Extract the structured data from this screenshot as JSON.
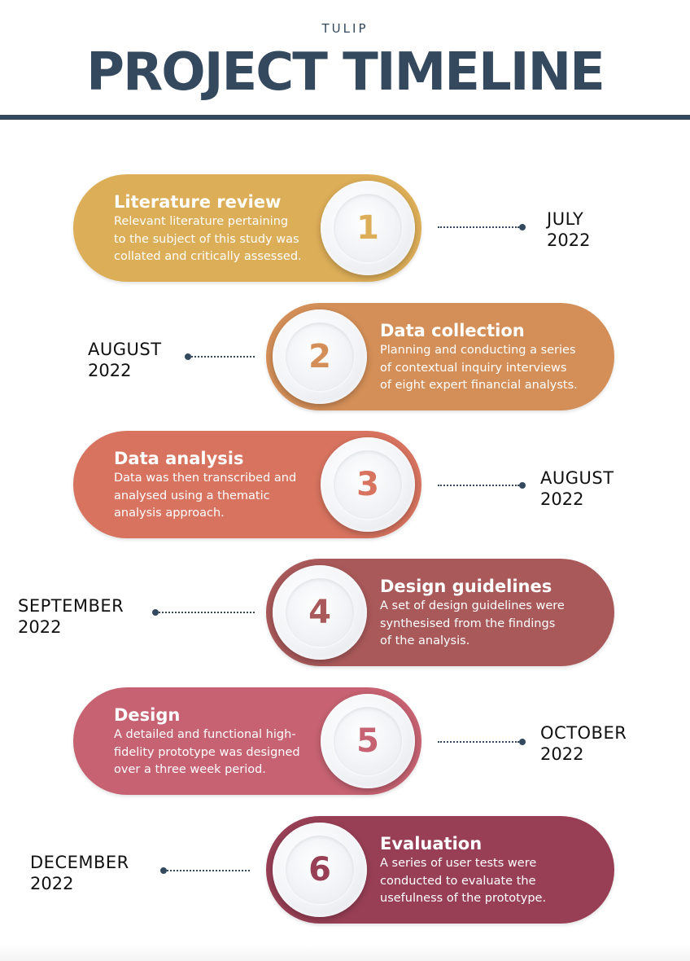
{
  "header": {
    "subtitle": "TULIP",
    "title": "PROJECT TIMELINE"
  },
  "steps": [
    {
      "number": "1",
      "title": "Literature review",
      "description": "Relevant literature pertaining\nto the subject of this study was\ncollated and critically assessed.",
      "date_month": "JULY",
      "date_year": "2022",
      "color": "#DDAE58"
    },
    {
      "number": "2",
      "title": "Data collection",
      "description": "Planning and conducting a series\nof contextual inquiry interviews\nof eight expert financial analysts.",
      "date_month": "AUGUST",
      "date_year": "2022",
      "color": "#D48F58"
    },
    {
      "number": "3",
      "title": "Data analysis",
      "description": "Data was then transcribed and\nanalysed using a thematic\nanalysis approach.",
      "date_month": "AUGUST",
      "date_year": "2022",
      "color": "#D7735F"
    },
    {
      "number": "4",
      "title": "Design guidelines",
      "description": "A set of design guidelines were\nsynthesised from the findings\nof the analysis.",
      "date_month": "SEPTEMBER",
      "date_year": "2022",
      "color": "#A9595A"
    },
    {
      "number": "5",
      "title": "Design",
      "description": "A detailed and functional high-\nfidelity prototype was designed\nover a three week period.",
      "date_month": "OCTOBER",
      "date_year": "2022",
      "color": "#C66272"
    },
    {
      "number": "6",
      "title": "Evaluation",
      "description": "A series of user tests were\nconducted to evaluate the\nusefulness of the prototype.",
      "date_month": "DECEMBER",
      "date_year": "2022",
      "color": "#983F55"
    }
  ]
}
